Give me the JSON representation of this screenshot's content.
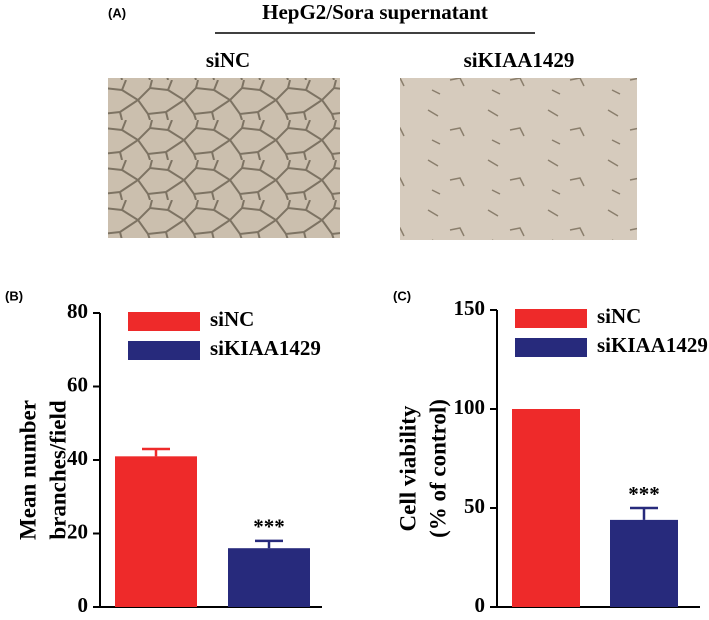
{
  "figure": {
    "panel_label": "(A)",
    "title": "HepG2/Sora supernatant",
    "image_labels": [
      "siNC",
      "siKIAA1429"
    ]
  },
  "chart_data": [
    {
      "type": "bar",
      "panel_label": "(B)",
      "ylabel": [
        "Mean number",
        "branches/field"
      ],
      "series": [
        {
          "name": "siNC",
          "color": "#ee2a2a",
          "values": [
            41
          ],
          "errors": [
            2
          ]
        },
        {
          "name": "siKIAA1429",
          "color": "#272a7c",
          "values": [
            16
          ],
          "errors": [
            2
          ],
          "annotation": "***"
        }
      ],
      "ylim": [
        0,
        80
      ],
      "yticks": [
        0,
        20,
        40,
        60,
        80
      ]
    },
    {
      "type": "bar",
      "panel_label": "(C)",
      "ylabel": [
        "Cell viability",
        "(% of control)"
      ],
      "series": [
        {
          "name": "siNC",
          "color": "#ee2a2a",
          "values": [
            100
          ]
        },
        {
          "name": "siKIAA1429",
          "color": "#272a7c",
          "values": [
            44
          ],
          "errors": [
            6
          ],
          "annotation": "***"
        }
      ],
      "ylim": [
        0,
        150
      ],
      "yticks": [
        0,
        50,
        100,
        150
      ]
    }
  ]
}
